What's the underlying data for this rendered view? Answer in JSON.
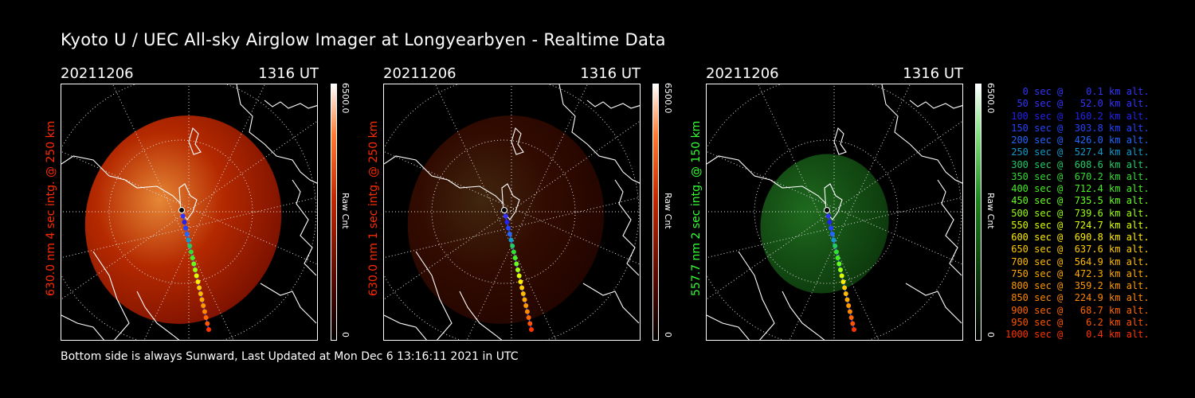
{
  "header": {
    "title": "Kyoto U / UEC All-sky Airglow Imager at Longyearbyen - Realtime Data"
  },
  "footer": {
    "text": "Bottom side is always Sunward, Last Updated at Mon Dec  6 13:16:11 2021 in UTC"
  },
  "panels": [
    {
      "date": "20211206",
      "time": "1316 UT",
      "ylabel": "630.0 nm 4 sec intg. @ 250 km",
      "label_color": "#ff2a00",
      "colorbar_max": "6500.0",
      "colorbar_unit": "Raw Cnt",
      "colorbar_min": "0",
      "colormap": "red",
      "brightness": 0.9
    },
    {
      "date": "20211206",
      "time": "1316 UT",
      "ylabel": "630.0 nm 1 sec intg. @ 250 km",
      "label_color": "#ff2a00",
      "colorbar_max": "6500.0",
      "colorbar_unit": "Raw Cnt",
      "colorbar_min": "0",
      "colormap": "red",
      "brightness": 0.25
    },
    {
      "date": "20211206",
      "time": "1316 UT",
      "ylabel": "557.7 nm 2 sec intg. @ 150 km",
      "label_color": "#33ff33",
      "colorbar_max": "6500.0",
      "colorbar_unit": "Raw Cnt",
      "colorbar_min": "0",
      "colormap": "green",
      "brightness": 0.35
    }
  ],
  "legend": [
    {
      "text": "   0 sec @    0.1 km alt.",
      "color": "#3333ff"
    },
    {
      "text": "  50 sec @   52.0 km alt.",
      "color": "#3333ff"
    },
    {
      "text": " 100 sec @  160.2 km alt.",
      "color": "#2222ee"
    },
    {
      "text": " 150 sec @  303.8 km alt.",
      "color": "#2244ff"
    },
    {
      "text": " 200 sec @  426.0 km alt.",
      "color": "#2266ff"
    },
    {
      "text": " 250 sec @  527.4 km alt.",
      "color": "#1199cc"
    },
    {
      "text": " 300 sec @  608.6 km alt.",
      "color": "#22cc66"
    },
    {
      "text": " 350 sec @  670.2 km alt.",
      "color": "#33dd33"
    },
    {
      "text": " 400 sec @  712.4 km alt.",
      "color": "#44ee22"
    },
    {
      "text": " 450 sec @  735.5 km alt.",
      "color": "#66ff22"
    },
    {
      "text": " 500 sec @  739.6 km alt.",
      "color": "#99ff11"
    },
    {
      "text": " 550 sec @  724.7 km alt.",
      "color": "#ddff00"
    },
    {
      "text": " 600 sec @  690.8 km alt.",
      "color": "#ffee00"
    },
    {
      "text": " 650 sec @  637.6 km alt.",
      "color": "#ffcc00"
    },
    {
      "text": " 700 sec @  564.9 km alt.",
      "color": "#ffbb00"
    },
    {
      "text": " 750 sec @  472.3 km alt.",
      "color": "#ffaa00"
    },
    {
      "text": " 800 sec @  359.2 km alt.",
      "color": "#ff9900"
    },
    {
      "text": " 850 sec @  224.9 km alt.",
      "color": "#ff8800"
    },
    {
      "text": " 900 sec @   68.7 km alt.",
      "color": "#ff6600"
    },
    {
      "text": " 950 sec @    6.2 km alt.",
      "color": "#ff5500"
    },
    {
      "text": "1000 sec @    0.4 km alt.",
      "color": "#ff3300"
    }
  ]
}
